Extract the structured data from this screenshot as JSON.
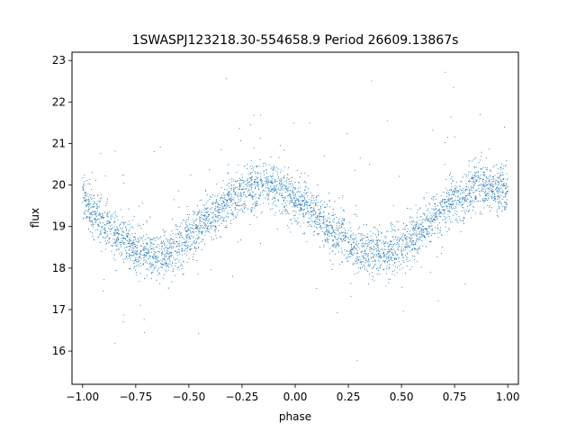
{
  "chart_data": {
    "type": "scatter",
    "title": "1SWASPJ123218.30-554658.9 Period 26609.13867s",
    "xlabel": "phase",
    "ylabel": "flux",
    "xlim": [
      -1.05,
      1.05
    ],
    "ylim": [
      15.2,
      23.2
    ],
    "xticks": [
      -1.0,
      -0.75,
      -0.5,
      -0.25,
      0.0,
      0.25,
      0.5,
      0.75,
      1.0
    ],
    "xtick_labels": [
      "−1.00",
      "−0.75",
      "−0.50",
      "−0.25",
      "0.00",
      "0.25",
      "0.50",
      "0.75",
      "1.00"
    ],
    "yticks": [
      16,
      17,
      18,
      19,
      20,
      21,
      22,
      23
    ],
    "ytick_labels": [
      "16",
      "17",
      "18",
      "19",
      "20",
      "21",
      "22",
      "23"
    ],
    "grid": false,
    "marker_color": "#1f77b4",
    "series": [
      {
        "x": [
          -1.0,
          -0.95,
          -0.9,
          -0.85,
          -0.8,
          -0.75,
          -0.7,
          -0.65,
          -0.6,
          -0.55,
          -0.5,
          -0.45,
          -0.4,
          -0.35,
          -0.3,
          -0.25,
          -0.2,
          -0.15,
          -0.1,
          -0.05,
          0.0,
          0.05,
          0.1,
          0.15,
          0.2,
          0.25,
          0.3,
          0.35,
          0.4,
          0.45,
          0.5,
          0.55,
          0.6,
          0.65,
          0.7,
          0.75,
          0.8,
          0.85,
          0.9,
          0.95,
          1.0
        ],
        "y": [
          19.75,
          19.35,
          19.05,
          18.8,
          18.65,
          18.45,
          18.35,
          18.3,
          18.4,
          18.55,
          18.75,
          18.95,
          19.2,
          19.45,
          19.65,
          19.85,
          19.95,
          20.0,
          19.95,
          19.85,
          19.7,
          19.5,
          19.25,
          19.0,
          18.8,
          18.6,
          18.45,
          18.35,
          18.35,
          18.4,
          18.55,
          18.75,
          18.95,
          19.2,
          19.45,
          19.65,
          19.8,
          19.95,
          19.95,
          19.9,
          19.8
        ]
      }
    ]
  }
}
